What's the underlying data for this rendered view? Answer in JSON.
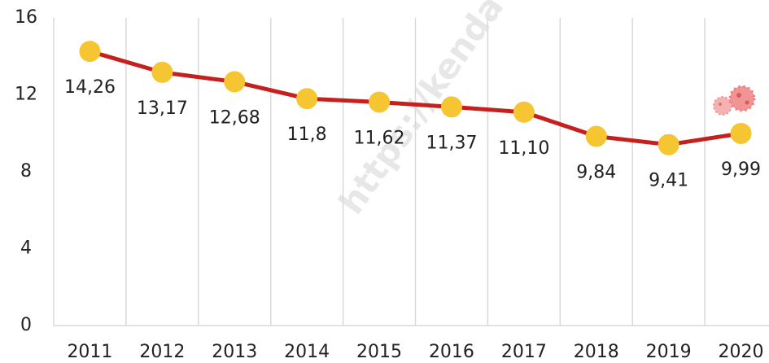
{
  "chart_data": {
    "type": "line",
    "categories": [
      "2011",
      "2012",
      "2013",
      "2014",
      "2015",
      "2016",
      "2017",
      "2018",
      "2019",
      "2020"
    ],
    "series": [
      {
        "name": null,
        "color": "#c4201e",
        "marker_color": "#f6c532",
        "values": [
          14.26,
          13.17,
          12.68,
          11.8,
          11.62,
          11.37,
          11.1,
          9.84,
          9.41,
          9.99
        ],
        "value_labels": [
          "14,26",
          "13,17",
          "12,68",
          "11,8",
          "11,62",
          "11,37",
          "11,10",
          "9,84",
          "9,41",
          "9,99"
        ]
      }
    ],
    "ylim": [
      0,
      16
    ],
    "yticks": [
      0,
      4,
      8,
      12,
      16
    ],
    "grid": true,
    "watermark": "https://kenda"
  }
}
